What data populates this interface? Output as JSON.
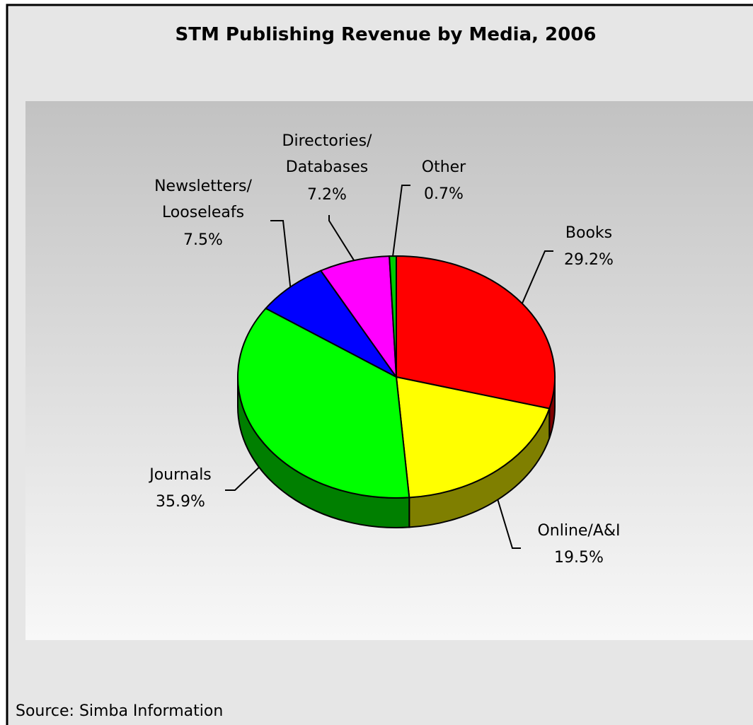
{
  "chart_data": {
    "type": "pie",
    "title": "STM Publishing Revenue by Media, 2006",
    "categories": [
      "Books",
      "Online/A&I",
      "Journals",
      "Newsletters/\nLooseleafs",
      "Directories/\nDatabases",
      "Other"
    ],
    "values": [
      29.2,
      19.5,
      35.9,
      7.5,
      7.2,
      0.7
    ],
    "value_labels": [
      "29.2%",
      "19.5%",
      "35.9%",
      "7.5%",
      "7.2%",
      "0.7%"
    ],
    "colors": [
      "#ff0000",
      "#ffff00",
      "#00ff00",
      "#0000ff",
      "#ff00ff",
      "#00cc00"
    ],
    "source": "Source: Simba Information"
  }
}
